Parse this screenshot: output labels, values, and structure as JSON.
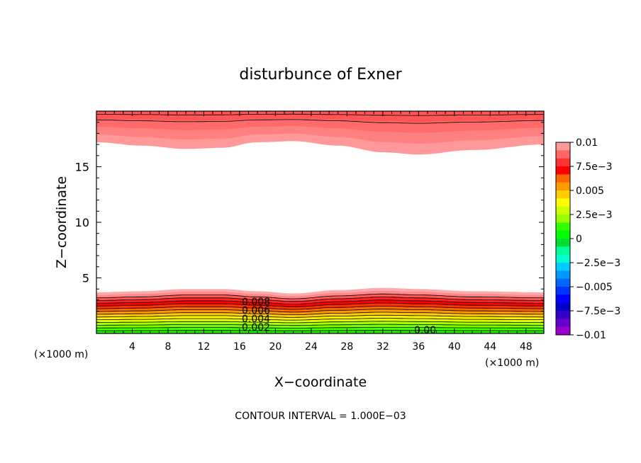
{
  "chart_data": {
    "type": "contour",
    "title": "disturbunce of Exner",
    "xlabel": "X−coordinate",
    "ylabel": "Z−coordinate",
    "x_unit_label": "(×1000 m)",
    "y_unit_label": "(×1000 m)",
    "footer": "CONTOUR INTERVAL = 1.000E−03",
    "xlim": [
      0,
      50
    ],
    "ylim": [
      0,
      20
    ],
    "x_ticks": [
      "4",
      "8",
      "12",
      "16",
      "20",
      "24",
      "28",
      "32",
      "36",
      "40",
      "44",
      "48"
    ],
    "x_tick_values": [
      4,
      8,
      12,
      16,
      20,
      24,
      28,
      32,
      36,
      40,
      44,
      48
    ],
    "y_ticks": [
      "5",
      "10",
      "15"
    ],
    "y_tick_values": [
      5,
      10,
      15
    ],
    "colorbar": {
      "labels": [
        "0.01",
        "7.5e−3",
        "0.005",
        "2.5e−3",
        "0",
        "−2.5e−3",
        "−0.005",
        "−7.5e−3",
        "−0.01"
      ],
      "colors_top_to_bottom": [
        "#ff9999",
        "#ff6666",
        "#ff3333",
        "#ff0000",
        "#ff6600",
        "#ff9900",
        "#ffcc00",
        "#ffff00",
        "#ccff00",
        "#99ff00",
        "#33ff00",
        "#00ff00",
        "#00dd33",
        "#00ff99",
        "#00ffcc",
        "#00ccff",
        "#0099ff",
        "#0066ff",
        "#0033ff",
        "#0000ff",
        "#0000cc",
        "#3300cc",
        "#6600cc",
        "#9900cc"
      ]
    },
    "contour_labels": [
      "0.008",
      "0.006",
      "0.004",
      "0.002",
      "0.00"
    ],
    "lower_band": {
      "top_z": [
        3.7,
        3.8,
        4.0,
        4.0,
        3.8,
        3.6,
        3.9,
        4.1,
        4.0,
        3.8,
        3.7
      ],
      "x": [
        0,
        5,
        10,
        14,
        18,
        22,
        27,
        32,
        36,
        42,
        50
      ]
    },
    "upper_band": {
      "bottom_z": [
        17.2,
        16.9,
        16.6,
        16.7,
        17.2,
        17.3,
        16.9,
        16.3,
        16.1,
        16.5,
        17.0
      ],
      "x": [
        0,
        5,
        10,
        14,
        18,
        22,
        27,
        32,
        36,
        42,
        50
      ]
    }
  }
}
